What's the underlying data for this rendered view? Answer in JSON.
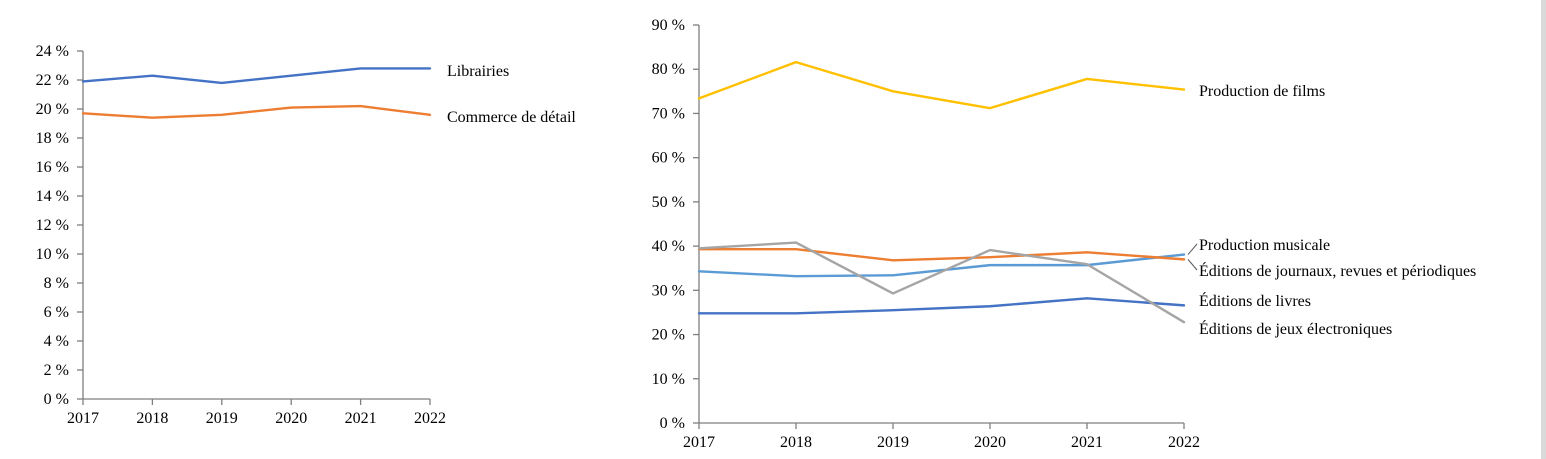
{
  "chart_data": [
    {
      "type": "line",
      "title": "",
      "xlabel": "",
      "ylabel": "",
      "x": [
        "2017",
        "2018",
        "2019",
        "2020",
        "2021",
        "2022"
      ],
      "ylim": [
        0,
        24
      ],
      "yticks": [
        0,
        2,
        4,
        6,
        8,
        10,
        12,
        14,
        16,
        18,
        20,
        22,
        24
      ],
      "ytick_labels": [
        "0 %",
        "2 %",
        "4 %",
        "6 %",
        "8 %",
        "10 %",
        "12 %",
        "14 %",
        "16 %",
        "18 %",
        "20 %",
        "22 %",
        "24 %"
      ],
      "grid": false,
      "legend": "inline-right",
      "series": [
        {
          "name": "Librairies",
          "color": "#4472c4",
          "values": [
            21.9,
            22.3,
            21.8,
            22.3,
            22.8,
            22.8
          ]
        },
        {
          "name": "Commerce de détail",
          "color": "#ed7d31",
          "values": [
            19.7,
            19.4,
            19.6,
            20.1,
            20.2,
            19.6
          ]
        }
      ]
    },
    {
      "type": "line",
      "title": "",
      "xlabel": "",
      "ylabel": "",
      "x": [
        "2017",
        "2018",
        "2019",
        "2020",
        "2021",
        "2022"
      ],
      "ylim": [
        0,
        90
      ],
      "yticks": [
        0,
        10,
        20,
        30,
        40,
        50,
        60,
        70,
        80,
        90
      ],
      "ytick_labels": [
        "0 %",
        "10 %",
        "20 %",
        "30 %",
        "40 %",
        "50 %",
        "60 %",
        "70 %",
        "80 %",
        "90 %"
      ],
      "grid": false,
      "legend": "inline-right",
      "series": [
        {
          "name": "Production de films",
          "color": "#ffc000",
          "values": [
            73.4,
            81.6,
            75.0,
            71.2,
            77.8,
            75.4
          ]
        },
        {
          "name": "Production musicale",
          "color": "#5b9bd5",
          "values": [
            34.3,
            33.2,
            33.4,
            35.7,
            35.7,
            38.1
          ]
        },
        {
          "name": "Éditions de journaux, revues et périodiques",
          "color": "#ed7d31",
          "values": [
            39.3,
            39.3,
            36.8,
            37.5,
            38.6,
            37.0
          ]
        },
        {
          "name": "Éditions de livres",
          "color": "#4472c4",
          "values": [
            24.8,
            24.8,
            25.5,
            26.4,
            28.2,
            26.6
          ]
        },
        {
          "name": "Éditions de jeux électroniques",
          "color": "#a5a5a5",
          "values": [
            39.5,
            40.8,
            29.3,
            39.1,
            35.9,
            22.8
          ]
        }
      ]
    }
  ]
}
